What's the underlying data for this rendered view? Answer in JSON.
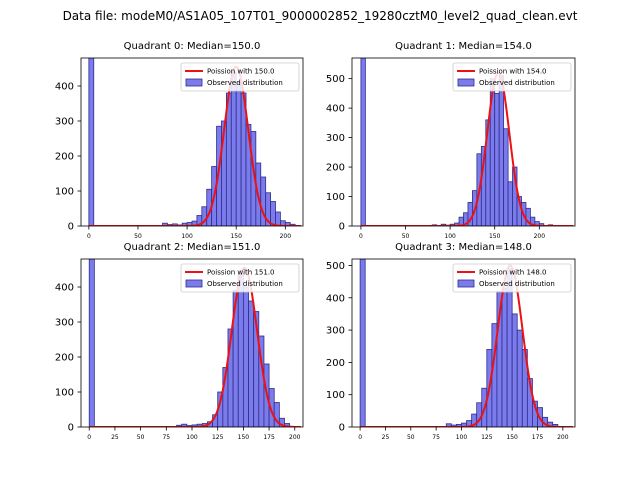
{
  "figure_title": "Data file: modeM0/AS1A05_107T01_9000002852_19280cztM0_level2_quad_clean.evt",
  "colors": {
    "bar_fill": "#7b7bec",
    "bar_edge": "#2e2e8c",
    "curve": "#ee1111",
    "axis": "#000000"
  },
  "chart_data": [
    {
      "type": "bar",
      "title": "Quadrant 0: Median=150.0",
      "xlim": [
        -8,
        218
      ],
      "ylim": [
        0,
        480
      ],
      "xticks": [
        0,
        50,
        100,
        150,
        200
      ],
      "yticks": [
        0,
        100,
        200,
        300,
        400
      ],
      "bin_width": 5,
      "bins": [
        {
          "x": 0,
          "value": 480
        },
        {
          "x": 75,
          "value": 8
        },
        {
          "x": 80,
          "value": 4
        },
        {
          "x": 85,
          "value": 6
        },
        {
          "x": 90,
          "value": 3
        },
        {
          "x": 95,
          "value": 8
        },
        {
          "x": 100,
          "value": 10
        },
        {
          "x": 105,
          "value": 14
        },
        {
          "x": 110,
          "value": 30
        },
        {
          "x": 115,
          "value": 55
        },
        {
          "x": 120,
          "value": 105
        },
        {
          "x": 125,
          "value": 170
        },
        {
          "x": 130,
          "value": 285
        },
        {
          "x": 135,
          "value": 300
        },
        {
          "x": 140,
          "value": 380
        },
        {
          "x": 145,
          "value": 440
        },
        {
          "x": 150,
          "value": 410
        },
        {
          "x": 155,
          "value": 380
        },
        {
          "x": 160,
          "value": 290
        },
        {
          "x": 165,
          "value": 270
        },
        {
          "x": 170,
          "value": 180
        },
        {
          "x": 175,
          "value": 140
        },
        {
          "x": 180,
          "value": 95
        },
        {
          "x": 185,
          "value": 70
        },
        {
          "x": 190,
          "value": 40
        },
        {
          "x": 195,
          "value": 15
        },
        {
          "x": 200,
          "value": 10
        },
        {
          "x": 205,
          "value": 5
        }
      ],
      "curve": {
        "mean": 150.0,
        "peak": 455
      },
      "legend": {
        "curve_label": "Poission with 150.0",
        "bars_label": "Observed distribution"
      }
    },
    {
      "type": "bar",
      "title": "Quadrant 1: Median=154.0",
      "xlim": [
        -10,
        240
      ],
      "ylim": [
        0,
        570
      ],
      "xticks": [
        0,
        50,
        100,
        150,
        200
      ],
      "yticks": [
        0,
        100,
        200,
        300,
        400,
        500
      ],
      "bin_width": 5,
      "bins": [
        {
          "x": 0,
          "value": 570
        },
        {
          "x": 80,
          "value": 4
        },
        {
          "x": 90,
          "value": 6
        },
        {
          "x": 95,
          "value": 3
        },
        {
          "x": 100,
          "value": 6
        },
        {
          "x": 105,
          "value": 10
        },
        {
          "x": 110,
          "value": 30
        },
        {
          "x": 115,
          "value": 45
        },
        {
          "x": 120,
          "value": 80
        },
        {
          "x": 125,
          "value": 120
        },
        {
          "x": 130,
          "value": 245
        },
        {
          "x": 135,
          "value": 270
        },
        {
          "x": 140,
          "value": 360
        },
        {
          "x": 145,
          "value": 500
        },
        {
          "x": 150,
          "value": 450
        },
        {
          "x": 155,
          "value": 510
        },
        {
          "x": 160,
          "value": 330
        },
        {
          "x": 165,
          "value": 150
        },
        {
          "x": 170,
          "value": 200
        },
        {
          "x": 175,
          "value": 100
        },
        {
          "x": 180,
          "value": 80
        },
        {
          "x": 185,
          "value": 60
        },
        {
          "x": 190,
          "value": 30
        },
        {
          "x": 195,
          "value": 15
        },
        {
          "x": 200,
          "value": 8
        },
        {
          "x": 210,
          "value": 4
        }
      ],
      "curve": {
        "mean": 154.0,
        "peak": 520
      },
      "legend": {
        "curve_label": "Poission with 154.0",
        "bars_label": "Observed distribution"
      }
    },
    {
      "type": "bar",
      "title": "Quadrant 2: Median=151.0",
      "xlim": [
        -8,
        208
      ],
      "ylim": [
        0,
        480
      ],
      "xticks": [
        0,
        25,
        50,
        75,
        100,
        125,
        150,
        175,
        200
      ],
      "yticks": [
        0,
        100,
        200,
        300,
        400
      ],
      "bin_width": 5,
      "bins": [
        {
          "x": 0,
          "value": 480
        },
        {
          "x": 85,
          "value": 5
        },
        {
          "x": 90,
          "value": 8
        },
        {
          "x": 95,
          "value": 4
        },
        {
          "x": 100,
          "value": 6
        },
        {
          "x": 105,
          "value": 8
        },
        {
          "x": 110,
          "value": 10
        },
        {
          "x": 115,
          "value": 15
        },
        {
          "x": 120,
          "value": 35
        },
        {
          "x": 125,
          "value": 100
        },
        {
          "x": 130,
          "value": 170
        },
        {
          "x": 135,
          "value": 280
        },
        {
          "x": 140,
          "value": 390
        },
        {
          "x": 145,
          "value": 440
        },
        {
          "x": 150,
          "value": 400
        },
        {
          "x": 155,
          "value": 360
        },
        {
          "x": 160,
          "value": 330
        },
        {
          "x": 165,
          "value": 260
        },
        {
          "x": 170,
          "value": 180
        },
        {
          "x": 175,
          "value": 110
        },
        {
          "x": 180,
          "value": 70
        },
        {
          "x": 185,
          "value": 25
        },
        {
          "x": 190,
          "value": 10
        }
      ],
      "curve": {
        "mean": 151.0,
        "peak": 455
      },
      "legend": {
        "curve_label": "Poission with 151.0",
        "bars_label": "Observed distribution"
      }
    },
    {
      "type": "bar",
      "title": "Quadrant 3: Median=148.0",
      "xlim": [
        -8,
        212
      ],
      "ylim": [
        0,
        520
      ],
      "xticks": [
        0,
        25,
        50,
        75,
        100,
        125,
        150,
        175,
        200
      ],
      "yticks": [
        0,
        100,
        200,
        300,
        400,
        500
      ],
      "bin_width": 5,
      "bins": [
        {
          "x": 0,
          "value": 520
        },
        {
          "x": 85,
          "value": 10
        },
        {
          "x": 90,
          "value": 6
        },
        {
          "x": 95,
          "value": 8
        },
        {
          "x": 100,
          "value": 12
        },
        {
          "x": 105,
          "value": 20
        },
        {
          "x": 110,
          "value": 40
        },
        {
          "x": 115,
          "value": 75
        },
        {
          "x": 120,
          "value": 120
        },
        {
          "x": 125,
          "value": 240
        },
        {
          "x": 130,
          "value": 320
        },
        {
          "x": 135,
          "value": 420
        },
        {
          "x": 140,
          "value": 430
        },
        {
          "x": 145,
          "value": 490
        },
        {
          "x": 150,
          "value": 350
        },
        {
          "x": 155,
          "value": 300
        },
        {
          "x": 160,
          "value": 240
        },
        {
          "x": 165,
          "value": 150
        },
        {
          "x": 170,
          "value": 80
        },
        {
          "x": 175,
          "value": 60
        },
        {
          "x": 180,
          "value": 30
        },
        {
          "x": 185,
          "value": 15
        },
        {
          "x": 190,
          "value": 8
        }
      ],
      "curve": {
        "mean": 148.0,
        "peak": 500
      },
      "legend": {
        "curve_label": "Poission with 148.0",
        "bars_label": "Observed distribution"
      }
    }
  ]
}
